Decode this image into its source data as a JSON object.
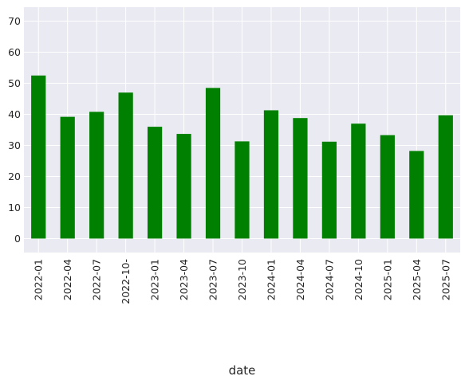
{
  "chart_data": {
    "type": "bar",
    "title": "",
    "xlabel": "date",
    "ylabel": "",
    "ylim": [
      -4.5,
      74.5
    ],
    "yticks": [
      0,
      10,
      20,
      30,
      40,
      50,
      60,
      70
    ],
    "grid": true,
    "background_color": "#eaeaf2",
    "bar_color": "#008000",
    "categories": [
      "2022-01",
      "2022-04",
      "2022-07",
      "2022-10-",
      "2023-01",
      "2023-04",
      "2023-07",
      "2023-10",
      "2024-01",
      "2024-04",
      "2024-07",
      "2024-10",
      "2025-01",
      "2025-04",
      "2025-07"
    ],
    "values": [
      52.5,
      39.2,
      40.8,
      47,
      36,
      33.7,
      48.5,
      31.3,
      41.3,
      38.8,
      31.2,
      37,
      33.3,
      28.2,
      39.7
    ]
  }
}
